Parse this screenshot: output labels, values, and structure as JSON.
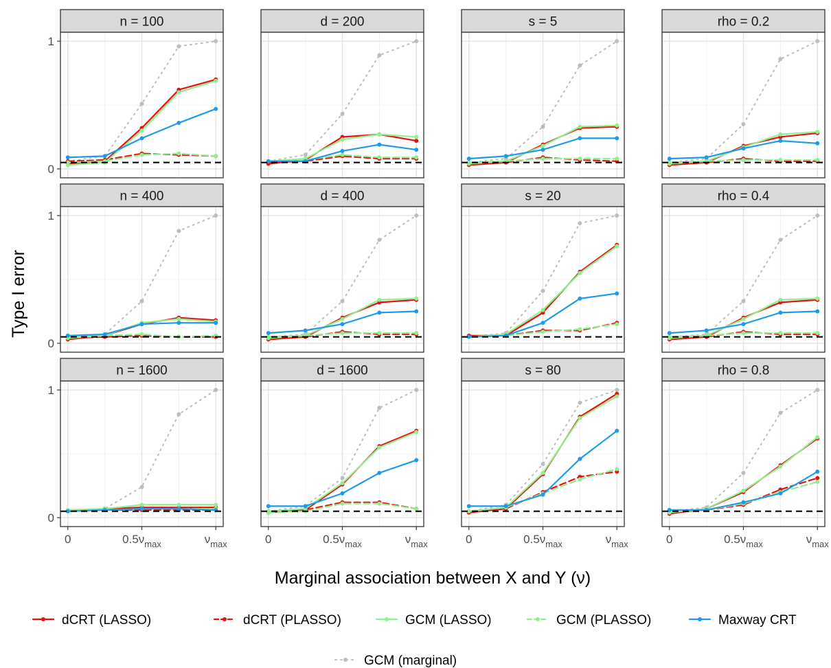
{
  "chart_data": {
    "type": "line",
    "x": [
      0,
      0.25,
      0.5,
      0.75,
      1
    ],
    "x_tick_values": [
      0,
      0.5,
      1
    ],
    "x_tick_labels": [
      {
        "main": "0",
        "sub": ""
      },
      {
        "main": "0.5ν",
        "sub": "max"
      },
      {
        "main": "ν",
        "sub": "max"
      }
    ],
    "y_tick_values": [
      0,
      1
    ],
    "y_tick_labels": [
      "0",
      "1"
    ],
    "ylim": [
      -0.07,
      1.07
    ],
    "xlim": [
      -0.05,
      1.05
    ],
    "reference_line": {
      "y": 0.05,
      "style": "dashed",
      "color": "#000000"
    },
    "xlabel": "Marginal association between X and Y (ν)",
    "ylabel": "Type I error",
    "grid": true,
    "legend_position": "bottom",
    "series_styles": [
      {
        "name": "dCRT (LASSO)",
        "color": "#e8100f",
        "dash": "solid"
      },
      {
        "name": "dCRT (PLASSO)",
        "color": "#e8100f",
        "dash": "dashed"
      },
      {
        "name": "GCM (LASSO)",
        "color": "#90ee90",
        "dash": "solid"
      },
      {
        "name": "GCM (PLASSO)",
        "color": "#90ee90",
        "dash": "dashed"
      },
      {
        "name": "Maxway CRT",
        "color": "#1f9ae9",
        "dash": "solid"
      },
      {
        "name": "GCM (marginal)",
        "color": "#bdbdbd",
        "dash": "dotted"
      }
    ],
    "panels": [
      {
        "label": "n = 100",
        "series": [
          {
            "name": "dCRT (LASSO)",
            "values": [
              0.04,
              0.06,
              0.32,
              0.62,
              0.7
            ]
          },
          {
            "name": "dCRT (PLASSO)",
            "values": [
              0.06,
              0.07,
              0.12,
              0.11,
              0.1
            ]
          },
          {
            "name": "GCM (LASSO)",
            "values": [
              0.03,
              0.05,
              0.3,
              0.6,
              0.69
            ]
          },
          {
            "name": "GCM (PLASSO)",
            "values": [
              0.05,
              0.06,
              0.11,
              0.12,
              0.1
            ]
          },
          {
            "name": "Maxway CRT",
            "values": [
              0.09,
              0.1,
              0.24,
              0.36,
              0.47
            ]
          },
          {
            "name": "GCM (marginal)",
            "values": [
              0.06,
              0.1,
              0.51,
              0.96,
              1.0
            ]
          }
        ]
      },
      {
        "label": "d = 200",
        "series": [
          {
            "name": "dCRT (LASSO)",
            "values": [
              0.04,
              0.07,
              0.25,
              0.27,
              0.22
            ]
          },
          {
            "name": "dCRT (PLASSO)",
            "values": [
              0.05,
              0.06,
              0.1,
              0.08,
              0.08
            ]
          },
          {
            "name": "GCM (LASSO)",
            "values": [
              0.06,
              0.08,
              0.23,
              0.27,
              0.25
            ]
          },
          {
            "name": "GCM (PLASSO)",
            "values": [
              0.06,
              0.07,
              0.11,
              0.09,
              0.09
            ]
          },
          {
            "name": "Maxway CRT",
            "values": [
              0.06,
              0.06,
              0.14,
              0.19,
              0.15
            ]
          },
          {
            "name": "GCM (marginal)",
            "values": [
              0.06,
              0.11,
              0.43,
              0.89,
              1.0
            ]
          }
        ]
      },
      {
        "label": "s = 5",
        "series": [
          {
            "name": "dCRT (LASSO)",
            "values": [
              0.03,
              0.05,
              0.19,
              0.32,
              0.33
            ]
          },
          {
            "name": "dCRT (PLASSO)",
            "values": [
              0.04,
              0.05,
              0.09,
              0.07,
              0.06
            ]
          },
          {
            "name": "GCM (LASSO)",
            "values": [
              0.04,
              0.06,
              0.18,
              0.33,
              0.34
            ]
          },
          {
            "name": "GCM (PLASSO)",
            "values": [
              0.05,
              0.06,
              0.08,
              0.08,
              0.08
            ]
          },
          {
            "name": "Maxway CRT",
            "values": [
              0.08,
              0.1,
              0.15,
              0.24,
              0.24
            ]
          },
          {
            "name": "GCM (marginal)",
            "values": [
              0.05,
              0.08,
              0.33,
              0.81,
              1.0
            ]
          }
        ]
      },
      {
        "label": "rho = 0.2",
        "series": [
          {
            "name": "dCRT (LASSO)",
            "values": [
              0.03,
              0.05,
              0.18,
              0.25,
              0.28
            ]
          },
          {
            "name": "dCRT (PLASSO)",
            "values": [
              0.04,
              0.05,
              0.08,
              0.06,
              0.06
            ]
          },
          {
            "name": "GCM (LASSO)",
            "values": [
              0.04,
              0.06,
              0.17,
              0.27,
              0.29
            ]
          },
          {
            "name": "GCM (PLASSO)",
            "values": [
              0.05,
              0.06,
              0.07,
              0.07,
              0.07
            ]
          },
          {
            "name": "Maxway CRT",
            "values": [
              0.08,
              0.09,
              0.16,
              0.22,
              0.2
            ]
          },
          {
            "name": "GCM (marginal)",
            "values": [
              0.05,
              0.08,
              0.35,
              0.86,
              1.0
            ]
          }
        ]
      },
      {
        "label": "n = 400",
        "series": [
          {
            "name": "dCRT (LASSO)",
            "values": [
              0.03,
              0.06,
              0.15,
              0.2,
              0.18
            ]
          },
          {
            "name": "dCRT (PLASSO)",
            "values": [
              0.04,
              0.05,
              0.06,
              0.05,
              0.05
            ]
          },
          {
            "name": "GCM (LASSO)",
            "values": [
              0.04,
              0.06,
              0.16,
              0.19,
              0.17
            ]
          },
          {
            "name": "GCM (PLASSO)",
            "values": [
              0.05,
              0.06,
              0.07,
              0.05,
              0.06
            ]
          },
          {
            "name": "Maxway CRT",
            "values": [
              0.06,
              0.07,
              0.15,
              0.16,
              0.16
            ]
          },
          {
            "name": "GCM (marginal)",
            "values": [
              0.05,
              0.07,
              0.33,
              0.88,
              1.0
            ]
          }
        ]
      },
      {
        "label": "d = 400",
        "series": [
          {
            "name": "dCRT (LASSO)",
            "values": [
              0.03,
              0.05,
              0.2,
              0.32,
              0.34
            ]
          },
          {
            "name": "dCRT (PLASSO)",
            "values": [
              0.04,
              0.05,
              0.09,
              0.07,
              0.07
            ]
          },
          {
            "name": "GCM (LASSO)",
            "values": [
              0.04,
              0.06,
              0.19,
              0.34,
              0.35
            ]
          },
          {
            "name": "GCM (PLASSO)",
            "values": [
              0.05,
              0.06,
              0.08,
              0.08,
              0.08
            ]
          },
          {
            "name": "Maxway CRT",
            "values": [
              0.08,
              0.1,
              0.15,
              0.24,
              0.25
            ]
          },
          {
            "name": "GCM (marginal)",
            "values": [
              0.05,
              0.07,
              0.33,
              0.81,
              1.0
            ]
          }
        ]
      },
      {
        "label": "s = 20",
        "series": [
          {
            "name": "dCRT (LASSO)",
            "values": [
              0.06,
              0.06,
              0.24,
              0.56,
              0.77
            ]
          },
          {
            "name": "dCRT (PLASSO)",
            "values": [
              0.05,
              0.06,
              0.1,
              0.1,
              0.16
            ]
          },
          {
            "name": "GCM (LASSO)",
            "values": [
              0.05,
              0.07,
              0.26,
              0.55,
              0.76
            ]
          },
          {
            "name": "GCM (PLASSO)",
            "values": [
              0.05,
              0.06,
              0.09,
              0.11,
              0.15
            ]
          },
          {
            "name": "Maxway CRT",
            "values": [
              0.05,
              0.06,
              0.16,
              0.35,
              0.39
            ]
          },
          {
            "name": "GCM (marginal)",
            "values": [
              0.05,
              0.08,
              0.41,
              0.94,
              1.0
            ]
          }
        ]
      },
      {
        "label": "rho = 0.4",
        "series": [
          {
            "name": "dCRT (LASSO)",
            "values": [
              0.03,
              0.05,
              0.2,
              0.32,
              0.34
            ]
          },
          {
            "name": "dCRT (PLASSO)",
            "values": [
              0.04,
              0.05,
              0.09,
              0.07,
              0.07
            ]
          },
          {
            "name": "GCM (LASSO)",
            "values": [
              0.04,
              0.06,
              0.19,
              0.34,
              0.35
            ]
          },
          {
            "name": "GCM (PLASSO)",
            "values": [
              0.05,
              0.06,
              0.08,
              0.08,
              0.08
            ]
          },
          {
            "name": "Maxway CRT",
            "values": [
              0.08,
              0.1,
              0.15,
              0.24,
              0.25
            ]
          },
          {
            "name": "GCM (marginal)",
            "values": [
              0.05,
              0.07,
              0.33,
              0.81,
              1.0
            ]
          }
        ]
      },
      {
        "label": "n = 1600",
        "series": [
          {
            "name": "dCRT (LASSO)",
            "values": [
              0.05,
              0.07,
              0.08,
              0.08,
              0.08
            ]
          },
          {
            "name": "dCRT (PLASSO)",
            "values": [
              0.05,
              0.06,
              0.06,
              0.06,
              0.06
            ]
          },
          {
            "name": "GCM (LASSO)",
            "values": [
              0.06,
              0.07,
              0.1,
              0.1,
              0.1
            ]
          },
          {
            "name": "GCM (PLASSO)",
            "values": [
              0.05,
              0.06,
              0.07,
              0.07,
              0.07
            ]
          },
          {
            "name": "Maxway CRT",
            "values": [
              0.05,
              0.06,
              0.07,
              0.07,
              0.06
            ]
          },
          {
            "name": "GCM (marginal)",
            "values": [
              0.05,
              0.07,
              0.24,
              0.81,
              1.0
            ]
          }
        ]
      },
      {
        "label": "d = 1600",
        "series": [
          {
            "name": "dCRT (LASSO)",
            "values": [
              0.04,
              0.06,
              0.26,
              0.56,
              0.68
            ]
          },
          {
            "name": "dCRT (PLASSO)",
            "values": [
              0.05,
              0.06,
              0.12,
              0.12,
              0.07
            ]
          },
          {
            "name": "GCM (LASSO)",
            "values": [
              0.05,
              0.07,
              0.27,
              0.55,
              0.67
            ]
          },
          {
            "name": "GCM (PLASSO)",
            "values": [
              0.04,
              0.05,
              0.11,
              0.11,
              0.07
            ]
          },
          {
            "name": "Maxway CRT",
            "values": [
              0.09,
              0.09,
              0.19,
              0.35,
              0.45
            ]
          },
          {
            "name": "GCM (marginal)",
            "values": [
              0.05,
              0.09,
              0.31,
              0.86,
              1.0
            ]
          }
        ]
      },
      {
        "label": "s = 80",
        "series": [
          {
            "name": "dCRT (LASSO)",
            "values": [
              0.04,
              0.07,
              0.34,
              0.79,
              0.97
            ]
          },
          {
            "name": "dCRT (PLASSO)",
            "values": [
              0.04,
              0.07,
              0.2,
              0.32,
              0.36
            ]
          },
          {
            "name": "GCM (LASSO)",
            "values": [
              0.05,
              0.08,
              0.35,
              0.78,
              0.95
            ]
          },
          {
            "name": "GCM (PLASSO)",
            "values": [
              0.05,
              0.08,
              0.19,
              0.3,
              0.38
            ]
          },
          {
            "name": "Maxway CRT",
            "values": [
              0.09,
              0.09,
              0.18,
              0.46,
              0.68
            ]
          },
          {
            "name": "GCM (marginal)",
            "values": [
              0.05,
              0.1,
              0.42,
              0.9,
              1.0
            ]
          }
        ]
      },
      {
        "label": "rho = 0.8",
        "series": [
          {
            "name": "dCRT (LASSO)",
            "values": [
              0.03,
              0.07,
              0.2,
              0.41,
              0.62
            ]
          },
          {
            "name": "dCRT (PLASSO)",
            "values": [
              0.04,
              0.06,
              0.1,
              0.22,
              0.31
            ]
          },
          {
            "name": "GCM (LASSO)",
            "values": [
              0.04,
              0.07,
              0.21,
              0.4,
              0.63
            ]
          },
          {
            "name": "GCM (PLASSO)",
            "values": [
              0.05,
              0.06,
              0.11,
              0.2,
              0.28
            ]
          },
          {
            "name": "Maxway CRT",
            "values": [
              0.06,
              0.06,
              0.12,
              0.19,
              0.36
            ]
          },
          {
            "name": "GCM (marginal)",
            "values": [
              0.05,
              0.08,
              0.35,
              0.82,
              1.0
            ]
          }
        ]
      }
    ]
  }
}
